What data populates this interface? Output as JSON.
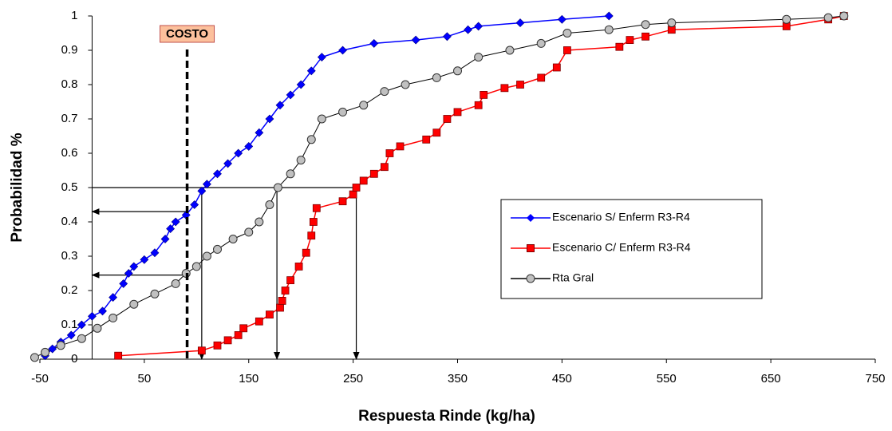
{
  "chart_data": {
    "type": "scatter",
    "x_label": "Respuesta Rinde (kg/ha)",
    "y_label": "Probabilidad %",
    "xlim": [
      -50,
      750
    ],
    "xticks": [
      -50,
      50,
      150,
      250,
      350,
      450,
      550,
      650,
      750
    ],
    "ylim": [
      0,
      1
    ],
    "yticks": [
      0,
      0.1,
      0.2,
      0.3,
      0.4,
      0.5,
      0.6,
      0.7,
      0.8,
      0.9,
      1
    ],
    "y_axis_crossing": 0,
    "legend_position": "right",
    "series": [
      {
        "name": "Escenario S/ Enferm R3-R4",
        "color": "#0000ff",
        "marker": "diamond",
        "x": [
          -45,
          -38,
          -30,
          -20,
          -10,
          0,
          10,
          20,
          30,
          35,
          40,
          50,
          60,
          70,
          75,
          80,
          90,
          98,
          105,
          110,
          120,
          130,
          140,
          150,
          160,
          170,
          180,
          190,
          200,
          210,
          220,
          240,
          270,
          310,
          340,
          360,
          370,
          410,
          450,
          495
        ],
        "values": [
          0.01,
          0.03,
          0.05,
          0.07,
          0.1,
          0.125,
          0.14,
          0.18,
          0.22,
          0.25,
          0.27,
          0.29,
          0.31,
          0.35,
          0.38,
          0.4,
          0.42,
          0.45,
          0.49,
          0.51,
          0.54,
          0.57,
          0.6,
          0.62,
          0.66,
          0.7,
          0.74,
          0.77,
          0.8,
          0.84,
          0.88,
          0.9,
          0.92,
          0.93,
          0.94,
          0.96,
          0.97,
          0.98,
          0.99,
          1
        ]
      },
      {
        "name": "Escenario C/ Enferm R3-R4",
        "color": "#ff0000",
        "marker": "square",
        "x": [
          25,
          105,
          120,
          130,
          140,
          145,
          160,
          170,
          180,
          182,
          185,
          190,
          198,
          205,
          210,
          212,
          215,
          240,
          250,
          253,
          260,
          270,
          280,
          285,
          295,
          320,
          330,
          340,
          350,
          370,
          375,
          395,
          410,
          430,
          445,
          455,
          505,
          515,
          530,
          555,
          665,
          705,
          720
        ],
        "values": [
          0.01,
          0.025,
          0.04,
          0.055,
          0.07,
          0.09,
          0.11,
          0.13,
          0.15,
          0.17,
          0.2,
          0.23,
          0.27,
          0.31,
          0.36,
          0.4,
          0.44,
          0.46,
          0.48,
          0.5,
          0.52,
          0.54,
          0.56,
          0.6,
          0.62,
          0.64,
          0.66,
          0.7,
          0.72,
          0.74,
          0.77,
          0.79,
          0.8,
          0.82,
          0.85,
          0.9,
          0.91,
          0.93,
          0.94,
          0.96,
          0.97,
          0.99,
          1
        ]
      },
      {
        "name": "Rta Gral",
        "color": "#000000",
        "marker": "circle",
        "x": [
          -55,
          -45,
          -30,
          -10,
          5,
          20,
          40,
          60,
          80,
          90,
          100,
          110,
          120,
          135,
          150,
          160,
          170,
          178,
          190,
          200,
          210,
          220,
          240,
          260,
          280,
          300,
          330,
          350,
          370,
          400,
          430,
          455,
          495,
          530,
          555,
          665,
          705,
          720
        ],
        "values": [
          0.005,
          0.02,
          0.04,
          0.06,
          0.09,
          0.12,
          0.16,
          0.19,
          0.22,
          0.25,
          0.27,
          0.3,
          0.32,
          0.35,
          0.37,
          0.4,
          0.45,
          0.5,
          0.54,
          0.58,
          0.64,
          0.7,
          0.72,
          0.74,
          0.78,
          0.8,
          0.82,
          0.84,
          0.88,
          0.9,
          0.92,
          0.95,
          0.96,
          0.975,
          0.98,
          0.99,
          0.995,
          1
        ]
      }
    ],
    "annotations": {
      "costo": {
        "label": "COSTO",
        "x": 91
      },
      "lines": [
        {
          "x": [
            0,
            253
          ],
          "y": [
            0.5,
            0.5
          ],
          "arrow": false
        },
        {
          "x": [
            91,
            0
          ],
          "y": [
            0.43,
            0.43
          ],
          "arrow": true
        },
        {
          "x": [
            91,
            0
          ],
          "y": [
            0.245,
            0.245
          ],
          "arrow": true
        },
        {
          "x": [
            105,
            105
          ],
          "y": [
            0.5,
            0
          ],
          "arrow": true
        },
        {
          "x": [
            177,
            177
          ],
          "y": [
            0.5,
            0
          ],
          "arrow": true
        },
        {
          "x": [
            253,
            253
          ],
          "y": [
            0.5,
            0
          ],
          "arrow": true
        }
      ]
    }
  }
}
